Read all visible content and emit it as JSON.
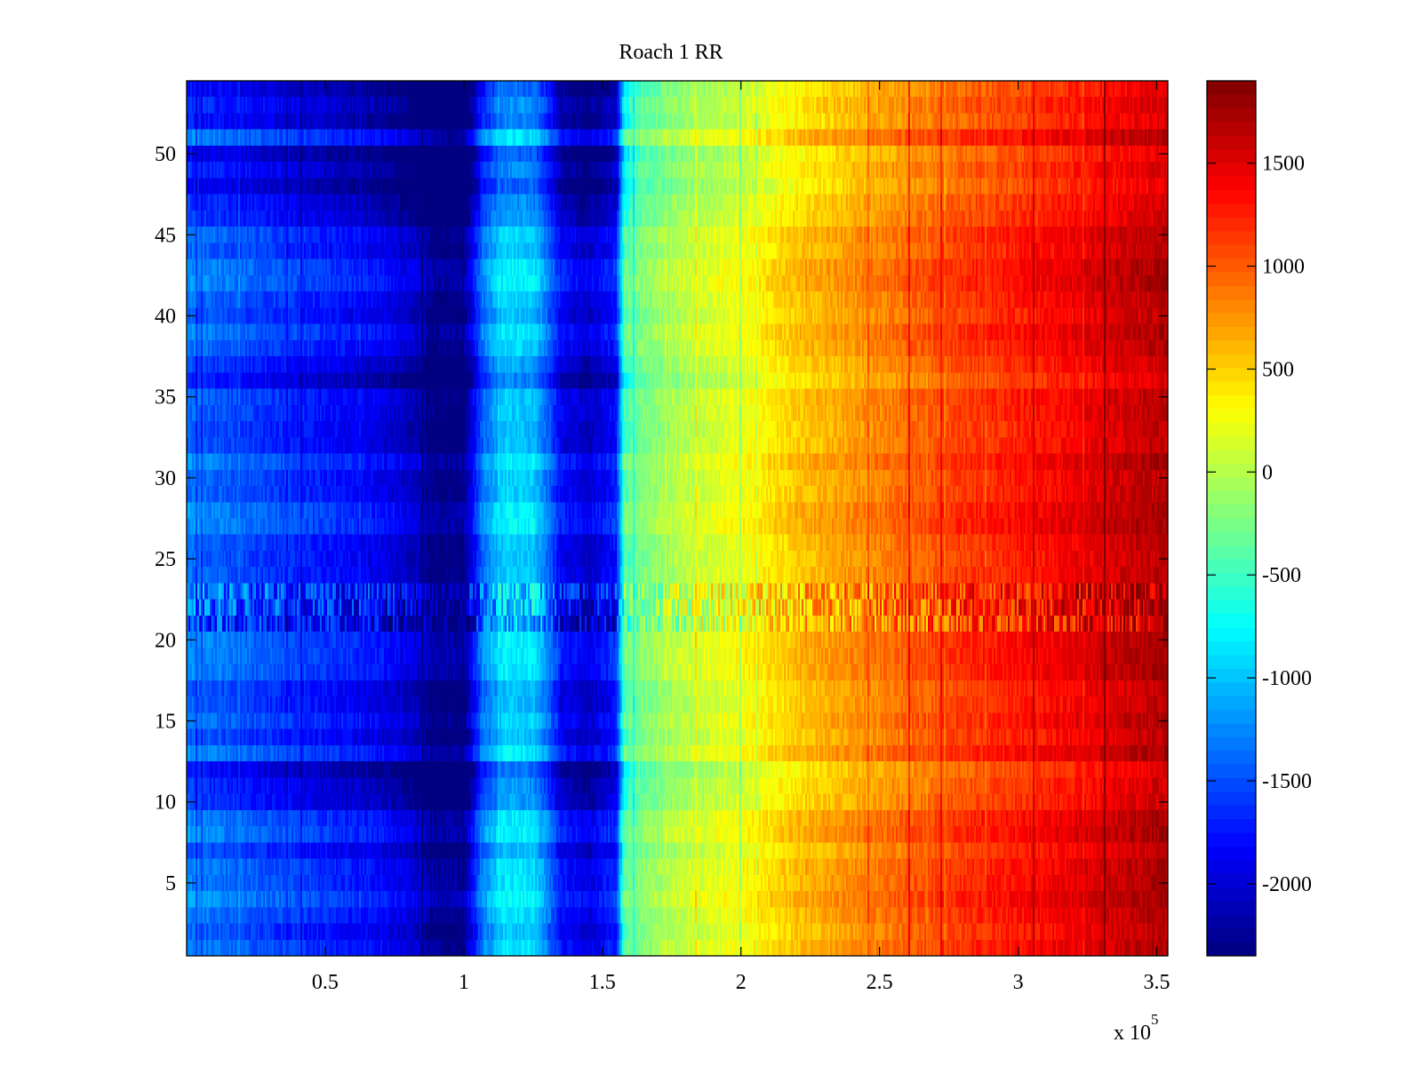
{
  "chart_data": {
    "type": "heatmap",
    "title": "Roach 1 RR",
    "xlabel": "",
    "ylabel": "",
    "xlim": [
      0,
      354000
    ],
    "ylim": [
      0.5,
      54.5
    ],
    "x_exponent_label": "x 10",
    "x_exponent_power": "5",
    "x_scale_factor": 100000,
    "x_ticks": [
      0.5,
      1,
      1.5,
      2,
      2.5,
      3,
      3.5
    ],
    "x_tick_labels": [
      "0.5",
      "1",
      "1.5",
      "2",
      "2.5",
      "3",
      "3.5"
    ],
    "y_ticks": [
      5,
      10,
      15,
      20,
      25,
      30,
      35,
      40,
      45,
      50
    ],
    "y_tick_labels": [
      "5",
      "10",
      "15",
      "20",
      "25",
      "30",
      "35",
      "40",
      "45",
      "50"
    ],
    "rows": 54,
    "colormap": "jet",
    "clim": [
      -2350,
      1900
    ],
    "colorbar_ticks": [
      -2000,
      -1500,
      -1000,
      -500,
      0,
      500,
      1000,
      1500
    ],
    "colorbar_tick_labels": [
      "-2000",
      "-1500",
      "-1000",
      "-500",
      "0",
      "500",
      "1000",
      "1500"
    ],
    "column_profile": {
      "x": [
        0,
        10000,
        30000,
        50000,
        70000,
        85000,
        88000,
        100000,
        107000,
        115000,
        125000,
        130000,
        135000,
        145000,
        155000,
        158000,
        165000,
        180000,
        200000,
        220000,
        250000,
        280000,
        310000,
        340000,
        354000
      ],
      "value": [
        -1300,
        -1400,
        -1550,
        -1700,
        -1850,
        -2100,
        -2300,
        -2300,
        -1300,
        -900,
        -950,
        -1300,
        -1800,
        -2000,
        -1700,
        -400,
        -200,
        50,
        250,
        550,
        850,
        1150,
        1350,
        1600,
        1700
      ]
    },
    "high_variance_rows": [
      21,
      22,
      23
    ],
    "dark_rows": [
      46,
      47,
      48,
      49,
      50,
      52,
      53,
      54,
      36,
      37,
      11,
      12,
      10
    ]
  }
}
